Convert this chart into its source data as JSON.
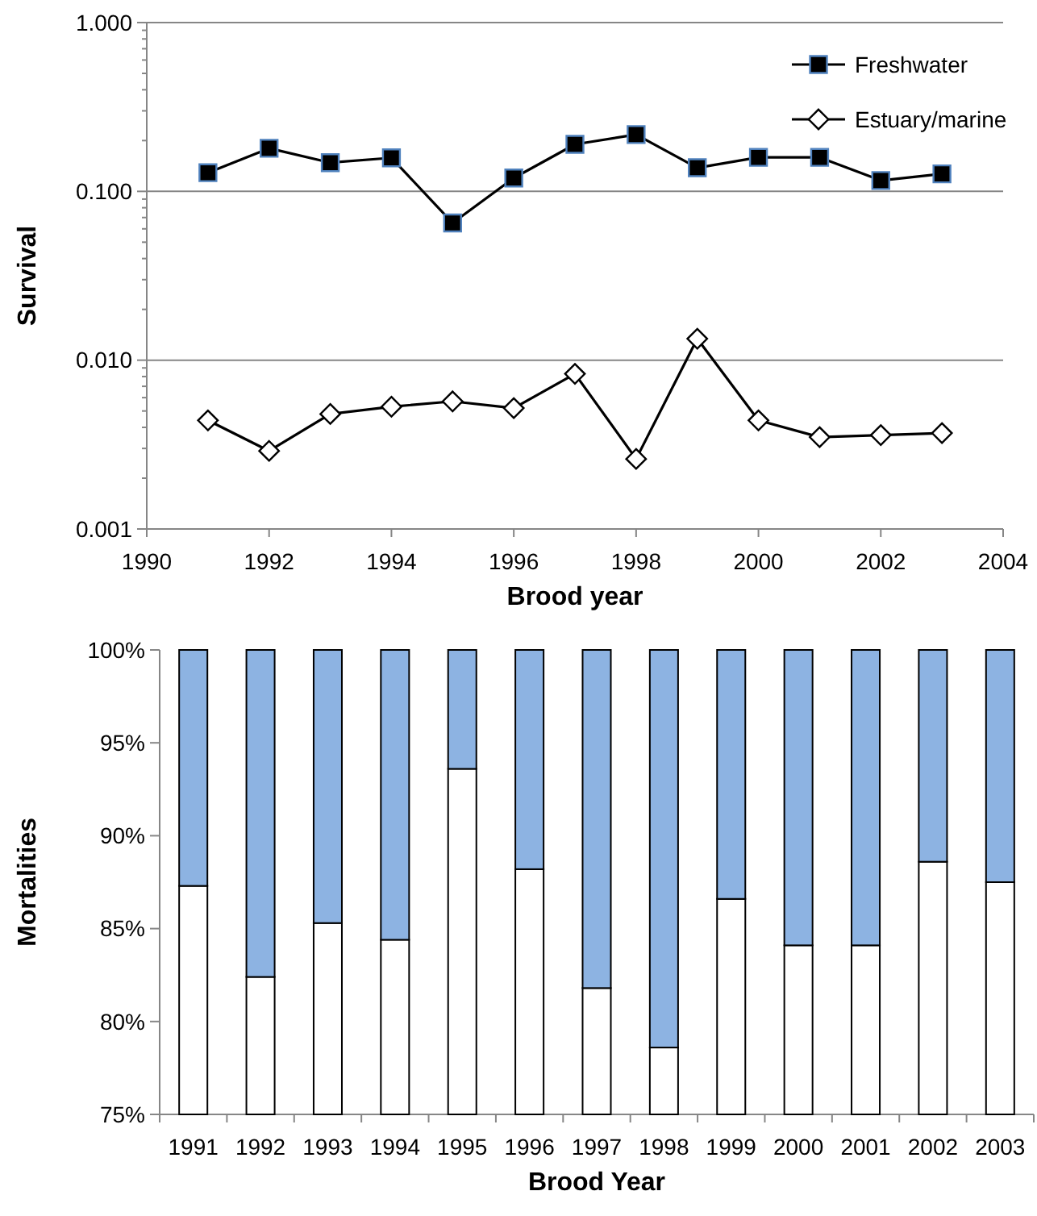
{
  "chart_data": [
    {
      "type": "line",
      "xlabel": "Brood year",
      "ylabel": "Survival",
      "x": [
        1991,
        1992,
        1993,
        1994,
        1995,
        1996,
        1997,
        1998,
        1999,
        2000,
        2001,
        2002,
        2003
      ],
      "xlim": [
        1990,
        2004
      ],
      "xticks": [
        1990,
        1992,
        1994,
        1996,
        1998,
        2000,
        2002,
        2004
      ],
      "ylim": [
        0.001,
        1
      ],
      "yticks": [
        {
          "value": 0.001,
          "label": "0.001"
        },
        {
          "value": 0.002,
          "label": null
        },
        {
          "value": 0.003,
          "label": null
        },
        {
          "value": 0.004,
          "label": null
        },
        {
          "value": 0.005,
          "label": null
        },
        {
          "value": 0.006,
          "label": null
        },
        {
          "value": 0.007,
          "label": null
        },
        {
          "value": 0.008,
          "label": null
        },
        {
          "value": 0.009,
          "label": null
        },
        {
          "value": 0.01,
          "label": "0.010"
        },
        {
          "value": 0.02,
          "label": null
        },
        {
          "value": 0.03,
          "label": null
        },
        {
          "value": 0.04,
          "label": null
        },
        {
          "value": 0.05,
          "label": null
        },
        {
          "value": 0.06,
          "label": null
        },
        {
          "value": 0.07,
          "label": null
        },
        {
          "value": 0.08,
          "label": null
        },
        {
          "value": 0.09,
          "label": null
        },
        {
          "value": 0.1,
          "label": "0.100"
        },
        {
          "value": 0.2,
          "label": null
        },
        {
          "value": 0.3,
          "label": null
        },
        {
          "value": 0.4,
          "label": null
        },
        {
          "value": 0.5,
          "label": null
        },
        {
          "value": 0.6,
          "label": null
        },
        {
          "value": 0.7,
          "label": null
        },
        {
          "value": 0.8,
          "label": null
        },
        {
          "value": 0.9,
          "label": null
        },
        {
          "value": 1,
          "label": "1.000"
        }
      ],
      "log": true,
      "grid": "y",
      "legend": "top right",
      "series": [
        {
          "name": "Freshwater",
          "color": "#000000",
          "marker": "square",
          "values": [
            0.129,
            0.18,
            0.148,
            0.158,
            0.065,
            0.12,
            0.19,
            0.217,
            0.138,
            0.159,
            0.159,
            0.116,
            0.127
          ]
        },
        {
          "name": "Estuary/marine",
          "color": "#000000",
          "marker": "diamond",
          "values": [
            0.0044,
            0.0029,
            0.0048,
            0.0053,
            0.0057,
            0.0052,
            0.0083,
            0.0026,
            0.0134,
            0.0044,
            0.0035,
            0.0036,
            0.0037
          ]
        }
      ]
    },
    {
      "type": "bar",
      "stacked": true,
      "xlabel": "Brood Year",
      "ylabel": "Mortalities",
      "categories": [
        "1991",
        "1992",
        "1993",
        "1994",
        "1995",
        "1996",
        "1997",
        "1998",
        "1999",
        "2000",
        "2001",
        "2002",
        "2003"
      ],
      "ylim": [
        75,
        100
      ],
      "yticks": [
        {
          "value": 75,
          "label": "75%"
        },
        {
          "value": 80,
          "label": "80%"
        },
        {
          "value": 85,
          "label": "85%"
        },
        {
          "value": 90,
          "label": "90%"
        },
        {
          "value": 95,
          "label": "95%"
        },
        {
          "value": 100,
          "label": "100%"
        }
      ],
      "series": [
        {
          "color": "#ffffff",
          "values": [
            87.3,
            82.4,
            85.3,
            84.4,
            93.6,
            88.2,
            81.8,
            78.6,
            86.6,
            84.1,
            84.1,
            88.6,
            87.5
          ]
        },
        {
          "color": "#8db3e2",
          "base": [
            87.3,
            82.4,
            85.3,
            84.4,
            93.6,
            88.2,
            81.8,
            78.6,
            86.6,
            84.1,
            84.1,
            88.6,
            87.5
          ],
          "values": [
            12.7,
            17.6,
            14.7,
            15.6,
            6.4,
            11.8,
            18.2,
            21.4,
            13.4,
            15.9,
            15.9,
            11.4,
            12.5
          ]
        }
      ]
    }
  ]
}
